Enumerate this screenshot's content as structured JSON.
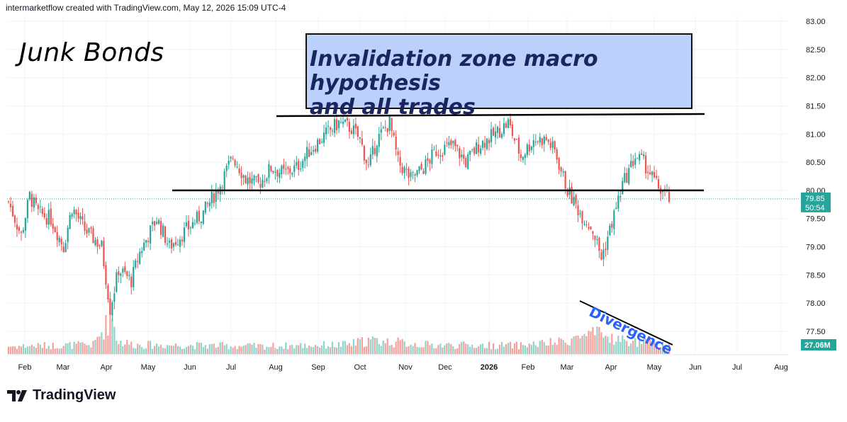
{
  "header": {
    "attribution": "intermarketflow created with TradingView.com, May 12, 2026 15:09 UTC-4"
  },
  "annotations": {
    "title": "Junk Bonds",
    "zone_line1": "Invalidation zone macro hypothesis",
    "zone_line2": "and all trades",
    "divergence": "Divergence"
  },
  "price_tag": {
    "price": "79.85",
    "countdown": "50:54",
    "color": "#26a69a"
  },
  "volume_tag": {
    "label": "27.06M",
    "color": "#26a69a"
  },
  "footer": {
    "brand": "TradingView",
    "logo_icon": "tradingview-logo-icon"
  },
  "colors": {
    "up": "#26a69a",
    "down": "#ef5350",
    "up_vol": "#8fd3c9",
    "down_vol": "#f4a09c"
  },
  "chart_data": {
    "type": "candlestick",
    "y_ticks": [
      "83.00",
      "82.50",
      "82.00",
      "81.50",
      "81.00",
      "80.50",
      "80.00",
      "79.50",
      "79.00",
      "78.50",
      "78.00",
      "77.50"
    ],
    "ylim": [
      77.3,
      83.1
    ],
    "x_ticks": [
      "Feb",
      "Mar",
      "Apr",
      "May",
      "Jun",
      "Jul",
      "Aug",
      "Sep",
      "Oct",
      "Nov",
      "Dec",
      "2026",
      "Feb",
      "Mar",
      "Apr",
      "May",
      "Jun",
      "Jul",
      "Aug"
    ],
    "anchors": [
      [
        0,
        79.8
      ],
      [
        6,
        79.2
      ],
      [
        10,
        79.9
      ],
      [
        14,
        79.6
      ],
      [
        20,
        79.5
      ],
      [
        26,
        79.0
      ],
      [
        30,
        79.7
      ],
      [
        36,
        79.3
      ],
      [
        44,
        79.0
      ],
      [
        48,
        77.9
      ],
      [
        52,
        78.6
      ],
      [
        58,
        78.4
      ],
      [
        62,
        78.9
      ],
      [
        70,
        79.5
      ],
      [
        76,
        79.0
      ],
      [
        84,
        79.3
      ],
      [
        92,
        79.6
      ],
      [
        100,
        80.1
      ],
      [
        106,
        80.6
      ],
      [
        112,
        80.2
      ],
      [
        118,
        80.1
      ],
      [
        124,
        80.4
      ],
      [
        130,
        80.3
      ],
      [
        136,
        80.4
      ],
      [
        142,
        80.7
      ],
      [
        150,
        81.0
      ],
      [
        156,
        81.2
      ],
      [
        162,
        81.1
      ],
      [
        166,
        80.9
      ],
      [
        170,
        80.4
      ],
      [
        174,
        80.9
      ],
      [
        180,
        81.2
      ],
      [
        184,
        80.5
      ],
      [
        190,
        80.2
      ],
      [
        196,
        80.4
      ],
      [
        202,
        80.7
      ],
      [
        210,
        80.8
      ],
      [
        216,
        80.5
      ],
      [
        222,
        80.8
      ],
      [
        230,
        81.0
      ],
      [
        236,
        81.2
      ],
      [
        242,
        80.6
      ],
      [
        248,
        80.9
      ],
      [
        254,
        80.9
      ],
      [
        258,
        80.7
      ],
      [
        264,
        80.0
      ],
      [
        270,
        79.6
      ],
      [
        276,
        79.3
      ],
      [
        280,
        78.8
      ],
      [
        284,
        79.3
      ],
      [
        290,
        80.1
      ],
      [
        296,
        80.6
      ],
      [
        300,
        80.5
      ],
      [
        306,
        80.1
      ],
      [
        312,
        79.85
      ]
    ],
    "volumes": [
      [
        0,
        2.0
      ],
      [
        20,
        2.2
      ],
      [
        40,
        2.4
      ],
      [
        48,
        9.0
      ],
      [
        52,
        3.2
      ],
      [
        60,
        2.4
      ],
      [
        90,
        2.2
      ],
      [
        120,
        2.0
      ],
      [
        160,
        2.4
      ],
      [
        170,
        3.5
      ],
      [
        200,
        2.3
      ],
      [
        240,
        2.2
      ],
      [
        260,
        3.0
      ],
      [
        270,
        4.5
      ],
      [
        278,
        5.0
      ],
      [
        290,
        3.5
      ],
      [
        300,
        2.8
      ],
      [
        312,
        2.7
      ]
    ],
    "levels": [
      {
        "name": "resistance",
        "value": 81.33
      },
      {
        "name": "support",
        "value": 80.0
      }
    ],
    "current_price": 79.85
  }
}
